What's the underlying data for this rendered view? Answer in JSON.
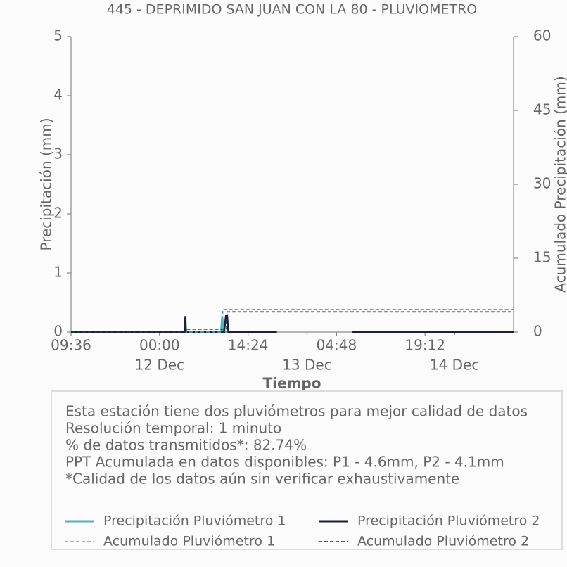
{
  "chart_data": {
    "type": "line",
    "title": "445 - DEPRIMIDO SAN JUAN CON LA 80 - PLUVIOMETRO",
    "x_label": "Tiempo",
    "y_label": "Precipitación (mm)",
    "y2_label": "Acumulado Precipitación (mm)",
    "xlim": [
      0,
      72
    ],
    "xticks": [
      {
        "value": 0,
        "label": "09:36"
      },
      {
        "value": 14.4,
        "label": "00:00"
      },
      {
        "value": 28.8,
        "label": "14:24"
      },
      {
        "value": 43.2,
        "label": "04:48"
      },
      {
        "value": 57.6,
        "label": "19:12"
      }
    ],
    "xdates": [
      {
        "value": 14.4,
        "label": "12 Dec"
      },
      {
        "value": 38.4,
        "label": "13 Dec"
      },
      {
        "value": 62.4,
        "label": "14 Dec"
      }
    ],
    "ylim": [
      0,
      5
    ],
    "yticks": [
      0,
      1,
      2,
      3,
      4,
      5
    ],
    "y2lim": [
      0,
      60
    ],
    "y2ticks": [
      0,
      15,
      30,
      45,
      60
    ],
    "series": [
      {
        "name": "Precipitación Pluviómetro 1",
        "color": "#4fb3bf",
        "style": "solid",
        "x": [
          0,
          24.4,
          24.6,
          24.8,
          33.5,
          39,
          45.8,
          72
        ],
        "values": [
          0,
          0,
          0.27,
          0,
          0,
          null,
          0,
          0
        ]
      },
      {
        "name": "Precipitación Pluviómetro 2",
        "color": "#1b1f3f",
        "style": "solid",
        "x": [
          0,
          18.5,
          18.6,
          18.7,
          24.9,
          25.2,
          25.4,
          25.6,
          33.5,
          39,
          45.8,
          72
        ],
        "values": [
          0,
          0,
          0.27,
          0,
          0,
          0.27,
          0.27,
          0,
          0,
          null,
          0,
          0
        ]
      },
      {
        "name": "Acumulado Pluviómetro 1",
        "color": "#4fb3bf",
        "style": "dashed",
        "axis": "y2",
        "x": [
          0,
          24.6,
          24.7,
          72
        ],
        "values": [
          0,
          0,
          4.6,
          4.6
        ]
      },
      {
        "name": "Acumulado Pluviómetro 2",
        "color": "#1b1f3f",
        "style": "dashed",
        "axis": "y2",
        "x": [
          0,
          18.6,
          18.7,
          25.3,
          25.4,
          72
        ],
        "values": [
          0,
          0,
          0.6,
          0.6,
          4.1,
          4.1
        ]
      }
    ],
    "notes": [
      "Esta estación tiene dos pluviómetros para mejor calidad de datos",
      "Resolución temporal: 1 minuto",
      "% de datos transmitidos*: 82.74%",
      "PPT Acumulada en datos disponibles: P1 - 4.6mm, P2 - 4.1mm",
      "*Calidad de los datos aún sin verificar exhaustivamente"
    ]
  }
}
